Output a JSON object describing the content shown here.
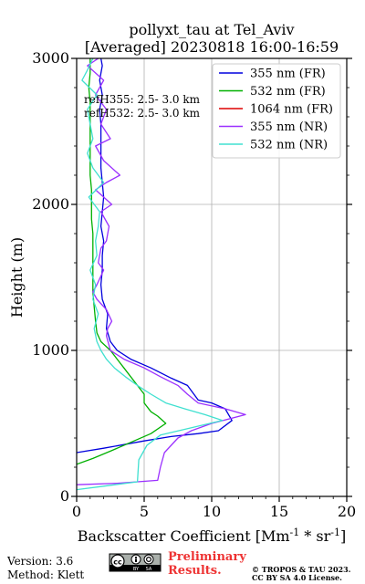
{
  "chart_data": {
    "type": "line",
    "title_line1": "pollyxt_tau at Tel_Aviv",
    "title_line2": "[Averaged] 20230818 16:00-16:59",
    "xlabel": "Backscatter Coefficient [Mm^-1 * sr^-1]",
    "ylabel": "Height (m)",
    "xlim": [
      0,
      20
    ],
    "ylim": [
      0,
      3000
    ],
    "x_ticks": [
      0,
      5,
      10,
      15,
      20
    ],
    "y_ticks": [
      0,
      1000,
      2000,
      3000
    ],
    "x_tick_labels": [
      "0",
      "5",
      "10",
      "15",
      "20"
    ],
    "y_tick_labels": [
      "0",
      "1000",
      "2000",
      "3000"
    ],
    "grid": true,
    "legend_position": "top-right",
    "annotations": [
      "refH355:  2.5- 3.0 km",
      "refH532:  2.5- 3.0 km"
    ],
    "series": [
      {
        "name": "355 nm (FR)",
        "color": "#0000dd",
        "points": [
          [
            -1,
            250
          ],
          [
            0,
            300
          ],
          [
            2,
            330
          ],
          [
            5,
            380
          ],
          [
            7,
            410
          ],
          [
            9,
            430
          ],
          [
            10.5,
            450
          ],
          [
            11.5,
            520
          ],
          [
            11,
            600
          ],
          [
            10,
            640
          ],
          [
            9,
            660
          ],
          [
            8.2,
            760
          ],
          [
            7,
            810
          ],
          [
            5.5,
            880
          ],
          [
            4,
            940
          ],
          [
            3,
            1000
          ],
          [
            2.5,
            1060
          ],
          [
            2.2,
            1150
          ],
          [
            2.3,
            1250
          ],
          [
            1.9,
            1350
          ],
          [
            1.8,
            1450
          ],
          [
            1.9,
            1550
          ],
          [
            1.9,
            1650
          ],
          [
            2,
            1750
          ],
          [
            1.8,
            1850
          ],
          [
            1.9,
            1950
          ],
          [
            2,
            2050
          ],
          [
            1.9,
            2150
          ],
          [
            1.8,
            2250
          ],
          [
            1.8,
            2350
          ],
          [
            1.8,
            2450
          ],
          [
            1.8,
            2550
          ],
          [
            1.7,
            2650
          ],
          [
            1.9,
            2750
          ],
          [
            1.7,
            2850
          ],
          [
            1.9,
            2950
          ],
          [
            1.8,
            3000
          ]
        ]
      },
      {
        "name": "532 nm (FR)",
        "color": "#00b000",
        "points": [
          [
            0,
            220
          ],
          [
            1.2,
            260
          ],
          [
            2.5,
            310
          ],
          [
            4,
            370
          ],
          [
            5.5,
            430
          ],
          [
            6.6,
            500
          ],
          [
            6,
            550
          ],
          [
            5.5,
            580
          ],
          [
            5,
            640
          ],
          [
            5,
            700
          ],
          [
            4.5,
            760
          ],
          [
            4,
            820
          ],
          [
            3.5,
            880
          ],
          [
            3,
            940
          ],
          [
            2.5,
            1000
          ],
          [
            1.8,
            1060
          ],
          [
            1.5,
            1120
          ],
          [
            1.4,
            1200
          ],
          [
            1.3,
            1300
          ],
          [
            1.2,
            1400
          ],
          [
            1.2,
            1500
          ],
          [
            1.2,
            1600
          ],
          [
            1.2,
            1700
          ],
          [
            1.2,
            1800
          ],
          [
            1.1,
            1900
          ],
          [
            1.1,
            2000
          ],
          [
            1.1,
            2100
          ],
          [
            1.0,
            2200
          ],
          [
            1.0,
            2300
          ],
          [
            1.0,
            2400
          ],
          [
            1.0,
            2500
          ],
          [
            1.0,
            2600
          ],
          [
            1.0,
            2700
          ],
          [
            0.9,
            2800
          ],
          [
            1.0,
            2900
          ],
          [
            1.0,
            3000
          ]
        ]
      },
      {
        "name": "1064 nm (FR)",
        "color": "#dd0000",
        "points": []
      },
      {
        "name": "355 nm (NR)",
        "color": "#9b30ff",
        "points": [
          [
            0,
            80
          ],
          [
            3,
            90
          ],
          [
            6,
            110
          ],
          [
            6.2,
            200
          ],
          [
            6.5,
            300
          ],
          [
            7,
            350
          ],
          [
            7.5,
            400
          ],
          [
            8.5,
            450
          ],
          [
            10,
            500
          ],
          [
            12.5,
            560
          ],
          [
            11,
            600
          ],
          [
            9,
            640
          ],
          [
            8.2,
            700
          ],
          [
            7.5,
            760
          ],
          [
            6.2,
            820
          ],
          [
            5,
            880
          ],
          [
            3.5,
            940
          ],
          [
            2.5,
            1000
          ],
          [
            2.2,
            1100
          ],
          [
            2.3,
            1150
          ],
          [
            2.6,
            1200
          ],
          [
            2.2,
            1280
          ],
          [
            1.5,
            1350
          ],
          [
            1.2,
            1400
          ],
          [
            1.5,
            1450
          ],
          [
            2.0,
            1550
          ],
          [
            1.6,
            1600
          ],
          [
            1.8,
            1700
          ],
          [
            2.2,
            1750
          ],
          [
            2.4,
            1850
          ],
          [
            1.8,
            1950
          ],
          [
            2.6,
            2000
          ],
          [
            1.4,
            2100
          ],
          [
            2.2,
            2150
          ],
          [
            3.2,
            2200
          ],
          [
            2.0,
            2300
          ],
          [
            1.4,
            2400
          ],
          [
            2.5,
            2450
          ],
          [
            1.8,
            2550
          ],
          [
            2.2,
            2650
          ],
          [
            1.4,
            2750
          ],
          [
            2.0,
            2850
          ],
          [
            0.8,
            2950
          ],
          [
            1.6,
            3000
          ]
        ]
      },
      {
        "name": "532 nm (NR)",
        "color": "#40e0d0",
        "points": [
          [
            -0.5,
            40
          ],
          [
            2,
            70
          ],
          [
            4.5,
            100
          ],
          [
            4.6,
            250
          ],
          [
            5.2,
            350
          ],
          [
            6.2,
            420
          ],
          [
            8.5,
            470
          ],
          [
            10.8,
            520
          ],
          [
            9.5,
            560
          ],
          [
            8,
            600
          ],
          [
            6.6,
            640
          ],
          [
            5.5,
            700
          ],
          [
            4.5,
            760
          ],
          [
            3.6,
            820
          ],
          [
            2.8,
            880
          ],
          [
            2.2,
            940
          ],
          [
            1.8,
            1000
          ],
          [
            1.5,
            1060
          ],
          [
            1.3,
            1150
          ],
          [
            1.6,
            1250
          ],
          [
            1.2,
            1350
          ],
          [
            1.4,
            1450
          ],
          [
            1.0,
            1550
          ],
          [
            1.5,
            1650
          ],
          [
            1.4,
            1750
          ],
          [
            1.6,
            1850
          ],
          [
            1.7,
            1950
          ],
          [
            0.9,
            2050
          ],
          [
            2.0,
            2150
          ],
          [
            1.2,
            2250
          ],
          [
            0.8,
            2350
          ],
          [
            1.2,
            2450
          ],
          [
            1.0,
            2550
          ],
          [
            0.8,
            2650
          ],
          [
            1.5,
            2750
          ],
          [
            0.4,
            2850
          ],
          [
            0.8,
            2920
          ],
          [
            1.2,
            3000
          ]
        ]
      }
    ]
  },
  "footer": {
    "version": "Version: 3.6",
    "method": "Method: Klett",
    "cc_label": "cc",
    "by_label": "BY",
    "sa_label": "SA",
    "preliminary_line1": "Preliminary",
    "preliminary_line2": "Results.",
    "copyright_line1": "© TROPOS & TAU 2023.",
    "copyright_line2": "CC BY SA 4.0 License."
  },
  "colors": {
    "preliminary": "#ee3333",
    "grid": "#b0b0b0",
    "axis": "#000000"
  }
}
